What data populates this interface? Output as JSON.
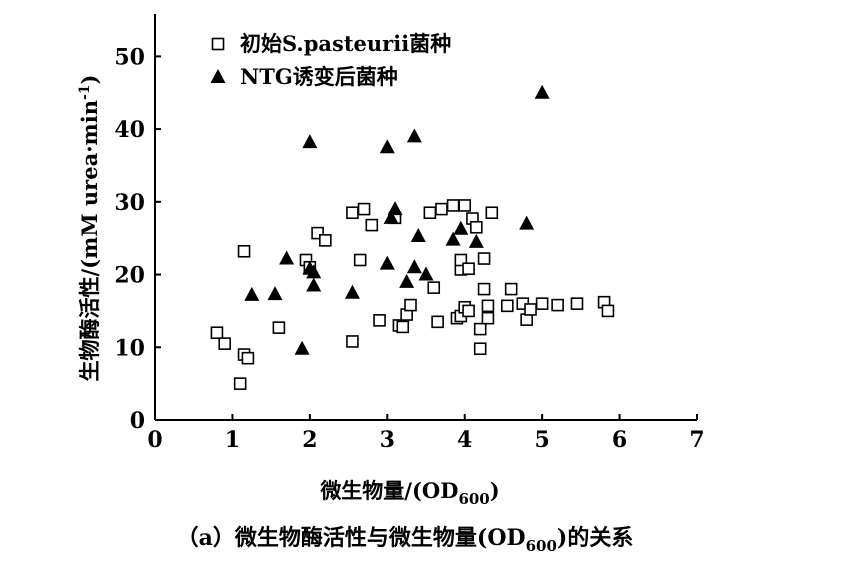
{
  "chart_data": {
    "type": "scatter",
    "xlabel": {
      "main": "微生物量/(OD",
      "sub": "600",
      "tail": ")"
    },
    "ylabel": "生物酶活性/(mM urea·min",
    "ylabel_sup": "-1",
    "ylabel_tail": ")",
    "xlim": [
      0,
      7
    ],
    "ylim": [
      0,
      55
    ],
    "x_ticks": [
      "0",
      "1",
      "2",
      "3",
      "4",
      "5",
      "6",
      "7"
    ],
    "y_ticks": [
      "0",
      "10",
      "20",
      "30",
      "40",
      "50"
    ],
    "grid": false,
    "legend_position": "top-left",
    "series": [
      {
        "name": "初始S.pasteurii菌种",
        "marker": "open-square",
        "color": "#000000",
        "points": [
          [
            0.8,
            12.0
          ],
          [
            0.9,
            10.5
          ],
          [
            1.1,
            5.0
          ],
          [
            1.15,
            9.0
          ],
          [
            1.15,
            23.2
          ],
          [
            1.2,
            8.5
          ],
          [
            1.6,
            12.7
          ],
          [
            1.95,
            22.0
          ],
          [
            2.0,
            21.0
          ],
          [
            2.1,
            25.7
          ],
          [
            2.2,
            24.7
          ],
          [
            2.55,
            10.8
          ],
          [
            2.55,
            28.5
          ],
          [
            2.65,
            22.0
          ],
          [
            2.7,
            29.0
          ],
          [
            2.8,
            26.8
          ],
          [
            2.9,
            13.7
          ],
          [
            3.1,
            27.8
          ],
          [
            3.15,
            13.0
          ],
          [
            3.2,
            12.8
          ],
          [
            3.25,
            14.5
          ],
          [
            3.3,
            15.8
          ],
          [
            3.55,
            28.5
          ],
          [
            3.6,
            18.2
          ],
          [
            3.65,
            13.5
          ],
          [
            3.7,
            29.0
          ],
          [
            3.85,
            29.5
          ],
          [
            3.9,
            14.0
          ],
          [
            3.95,
            20.7
          ],
          [
            3.95,
            22.0
          ],
          [
            3.95,
            14.3
          ],
          [
            4.0,
            15.5
          ],
          [
            4.0,
            29.5
          ],
          [
            4.05,
            20.8
          ],
          [
            4.05,
            15.0
          ],
          [
            4.1,
            27.7
          ],
          [
            4.15,
            26.5
          ],
          [
            4.2,
            9.8
          ],
          [
            4.2,
            12.5
          ],
          [
            4.25,
            22.2
          ],
          [
            4.25,
            18.0
          ],
          [
            4.3,
            15.7
          ],
          [
            4.3,
            14.0
          ],
          [
            4.35,
            28.5
          ],
          [
            4.55,
            15.7
          ],
          [
            4.6,
            18.0
          ],
          [
            4.75,
            16.0
          ],
          [
            4.8,
            13.8
          ],
          [
            4.85,
            15.2
          ],
          [
            5.0,
            16.0
          ],
          [
            5.2,
            15.8
          ],
          [
            5.45,
            16.0
          ],
          [
            5.8,
            16.2
          ],
          [
            5.85,
            15.0
          ]
        ]
      },
      {
        "name": "NTG诱变后菌种",
        "marker": "filled-triangle",
        "color": "#000000",
        "points": [
          [
            1.25,
            17.2
          ],
          [
            1.55,
            17.3
          ],
          [
            1.7,
            22.2
          ],
          [
            1.9,
            9.8
          ],
          [
            2.0,
            38.2
          ],
          [
            2.0,
            20.8
          ],
          [
            2.05,
            18.5
          ],
          [
            2.05,
            20.3
          ],
          [
            2.55,
            17.5
          ],
          [
            3.0,
            37.5
          ],
          [
            3.0,
            21.5
          ],
          [
            3.05,
            27.8
          ],
          [
            3.1,
            29.0
          ],
          [
            3.25,
            19.0
          ],
          [
            3.35,
            39.0
          ],
          [
            3.35,
            21.0
          ],
          [
            3.4,
            25.3
          ],
          [
            3.5,
            20.0
          ],
          [
            3.85,
            24.8
          ],
          [
            3.95,
            26.3
          ],
          [
            4.15,
            24.5
          ],
          [
            4.8,
            27.0
          ],
          [
            5.0,
            45.0
          ]
        ]
      }
    ]
  },
  "caption": {
    "prefix": "（a）微生物酶活性与微生物量(OD",
    "sub": "600",
    "suffix": ")的关系"
  }
}
